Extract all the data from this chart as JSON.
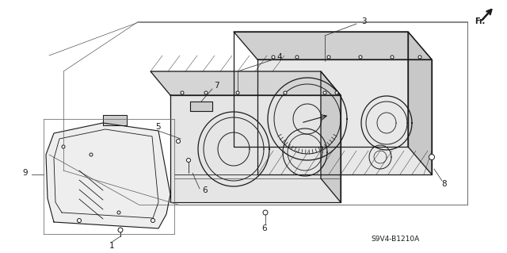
{
  "background_color": "#ffffff",
  "line_color": "#1a1a1a",
  "part_code": "S9V4-B1210A",
  "fig_width": 6.4,
  "fig_height": 3.19,
  "dpi": 100,
  "label_fontsize": 7.5,
  "partcode_fontsize": 6.5
}
